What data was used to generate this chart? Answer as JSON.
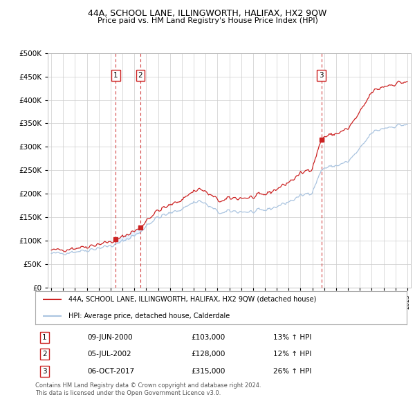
{
  "title1": "44A, SCHOOL LANE, ILLINGWORTH, HALIFAX, HX2 9QW",
  "title2": "Price paid vs. HM Land Registry's House Price Index (HPI)",
  "ylabel_vals": [
    0,
    50000,
    100000,
    150000,
    200000,
    250000,
    300000,
    350000,
    400000,
    450000,
    500000
  ],
  "ylabel_labels": [
    "£0",
    "£50K",
    "£100K",
    "£150K",
    "£200K",
    "£250K",
    "£300K",
    "£350K",
    "£400K",
    "£450K",
    "£500K"
  ],
  "xlim_start": 1994.7,
  "xlim_end": 2025.3,
  "ylim_min": 0,
  "ylim_max": 500000,
  "hpi_color": "#aac4e0",
  "price_color": "#cc2222",
  "sale_marker_color": "#cc2222",
  "vline_color": "#cc2222",
  "shade_color": "#ddeeff",
  "legend_label_red": "44A, SCHOOL LANE, ILLINGWORTH, HALIFAX, HX2 9QW (detached house)",
  "legend_label_blue": "HPI: Average price, detached house, Calderdale",
  "transactions": [
    {
      "id": 1,
      "date": 2000.44,
      "price": 103000,
      "label": "1"
    },
    {
      "id": 2,
      "date": 2002.51,
      "price": 128000,
      "label": "2"
    },
    {
      "id": 3,
      "date": 2017.76,
      "price": 315000,
      "label": "3"
    }
  ],
  "table_rows": [
    {
      "num": "1",
      "date": "09-JUN-2000",
      "price": "£103,000",
      "change": "13% ↑ HPI"
    },
    {
      "num": "2",
      "date": "05-JUL-2002",
      "price": "£128,000",
      "change": "12% ↑ HPI"
    },
    {
      "num": "3",
      "date": "06-OCT-2017",
      "price": "£315,000",
      "change": "26% ↑ HPI"
    }
  ],
  "footer": "Contains HM Land Registry data © Crown copyright and database right 2024.\nThis data is licensed under the Open Government Licence v3.0.",
  "background_color": "#ffffff",
  "plot_bg_color": "#ffffff",
  "grid_color": "#cccccc"
}
